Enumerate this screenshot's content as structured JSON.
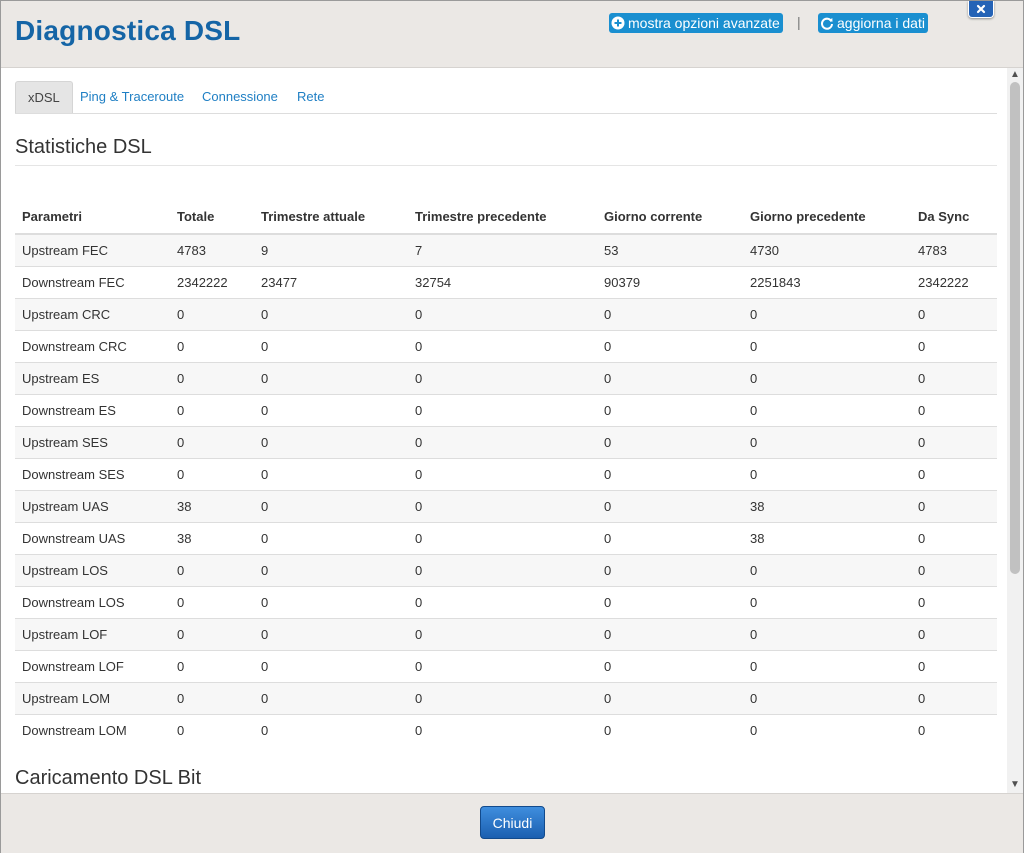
{
  "header": {
    "title": "Diagnostica DSL",
    "advanced_label": "mostra opzioni avanzate",
    "separator": "|",
    "refresh_label": "aggiorna i dati"
  },
  "tabs": [
    {
      "label": "xDSL",
      "active": true
    },
    {
      "label": "Ping & Traceroute",
      "active": false
    },
    {
      "label": "Connessione",
      "active": false
    },
    {
      "label": "Rete",
      "active": false
    }
  ],
  "section_stats": {
    "title": "Statistiche DSL",
    "columns": [
      "Parametri",
      "Totale",
      "Trimestre attuale",
      "Trimestre precedente",
      "Giorno corrente",
      "Giorno precedente",
      "Da Sync"
    ],
    "rows": [
      [
        "Upstream FEC",
        "4783",
        "9",
        "7",
        "53",
        "4730",
        "4783"
      ],
      [
        "Downstream FEC",
        "2342222",
        "23477",
        "32754",
        "90379",
        "2251843",
        "2342222"
      ],
      [
        "Upstream CRC",
        "0",
        "0",
        "0",
        "0",
        "0",
        "0"
      ],
      [
        "Downstream CRC",
        "0",
        "0",
        "0",
        "0",
        "0",
        "0"
      ],
      [
        "Upstream ES",
        "0",
        "0",
        "0",
        "0",
        "0",
        "0"
      ],
      [
        "Downstream ES",
        "0",
        "0",
        "0",
        "0",
        "0",
        "0"
      ],
      [
        "Upstream SES",
        "0",
        "0",
        "0",
        "0",
        "0",
        "0"
      ],
      [
        "Downstream SES",
        "0",
        "0",
        "0",
        "0",
        "0",
        "0"
      ],
      [
        "Upstream UAS",
        "38",
        "0",
        "0",
        "0",
        "38",
        "0"
      ],
      [
        "Downstream UAS",
        "38",
        "0",
        "0",
        "0",
        "38",
        "0"
      ],
      [
        "Upstream LOS",
        "0",
        "0",
        "0",
        "0",
        "0",
        "0"
      ],
      [
        "Downstream LOS",
        "0",
        "0",
        "0",
        "0",
        "0",
        "0"
      ],
      [
        "Upstream LOF",
        "0",
        "0",
        "0",
        "0",
        "0",
        "0"
      ],
      [
        "Downstream LOF",
        "0",
        "0",
        "0",
        "0",
        "0",
        "0"
      ],
      [
        "Upstream LOM",
        "0",
        "0",
        "0",
        "0",
        "0",
        "0"
      ],
      [
        "Downstream LOM",
        "0",
        "0",
        "0",
        "0",
        "0",
        "0"
      ]
    ]
  },
  "section_bits": {
    "title": "Caricamento DSL Bit"
  },
  "footer": {
    "close_label": "Chiudi"
  },
  "icons": {
    "advanced": "plus-circle-icon",
    "refresh": "refresh-icon",
    "close": "close-icon"
  },
  "colors": {
    "title": "#1565a6",
    "header_button": "#1a8fd0",
    "link": "#1f7fc4",
    "primary_button": "#2563b6",
    "header_bg": "#ebe8e5"
  }
}
